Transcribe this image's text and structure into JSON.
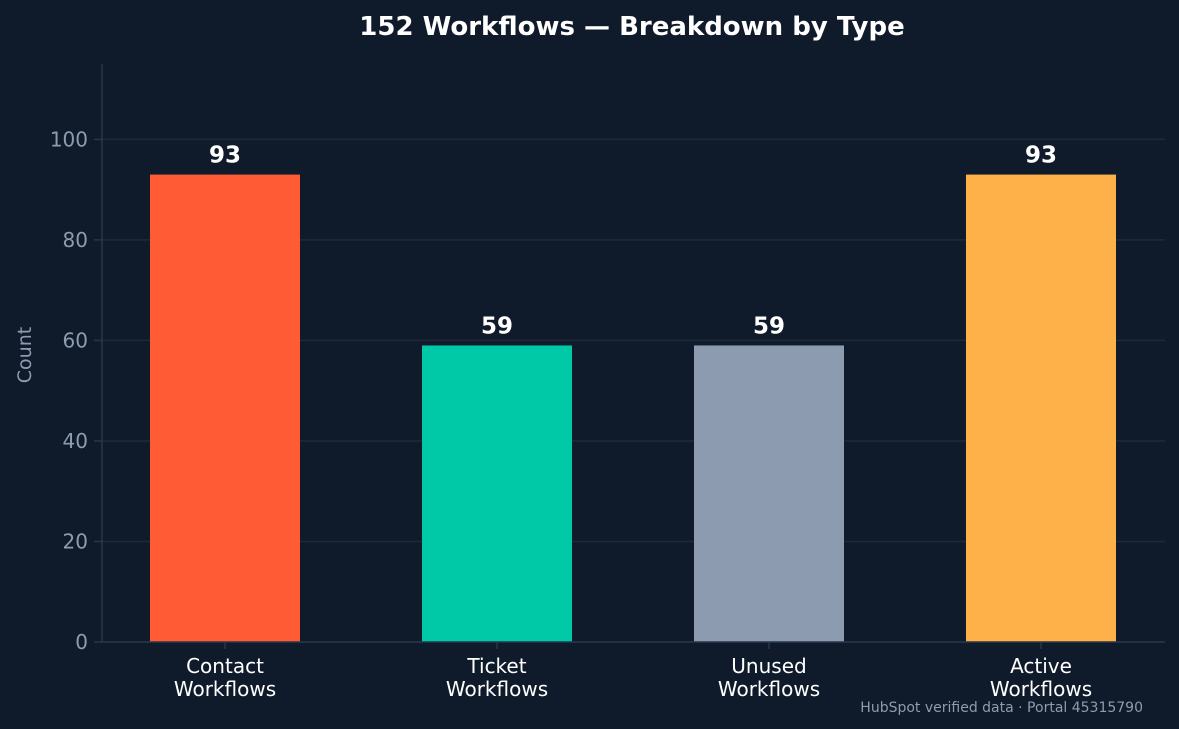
{
  "colors": {
    "background": "#0f1b2a",
    "text": "#ffffff",
    "muted_text": "#8e9cb0",
    "grid": "#1c2a3b",
    "axis": "#26364a"
  },
  "footnote": "HubSpot verified data · Portal 45315790",
  "chart_data": {
    "type": "bar",
    "title": "152 Workflows — Breakdown by Type",
    "xlabel": "",
    "ylabel": "Count",
    "ylim": [
      0,
      115
    ],
    "yticks": [
      0,
      20,
      40,
      60,
      80,
      100
    ],
    "grid": true,
    "legend": "none",
    "categories": [
      [
        "Contact",
        "Workflows"
      ],
      [
        "Ticket",
        "Workflows"
      ],
      [
        "Unused",
        "Workflows"
      ],
      [
        "Active",
        "Workflows"
      ]
    ],
    "values": [
      93,
      59,
      59,
      93
    ],
    "value_labels": [
      "93",
      "59",
      "59",
      "93"
    ],
    "bar_colors": [
      "#ff5c35",
      "#00c9a7",
      "#8c9bb0",
      "#ffb149"
    ]
  }
}
